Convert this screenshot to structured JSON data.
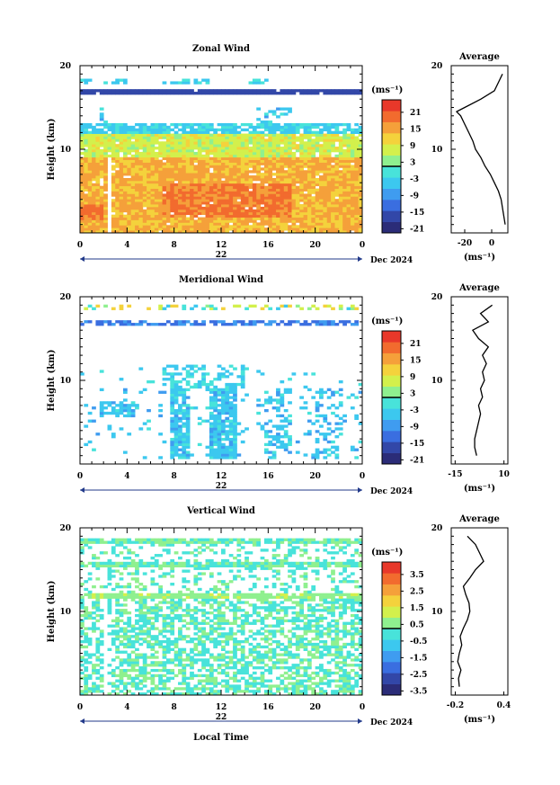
{
  "x_axis_label": "Local Time",
  "chart_data": [
    {
      "type": "heatmap",
      "title": "Zonal Wind",
      "ylabel": "Height (km)",
      "ylim": [
        0,
        20
      ],
      "yticks": [
        10,
        20
      ],
      "xlim": [
        0,
        24
      ],
      "xticks": [
        "0",
        "4",
        "8",
        "12",
        "16",
        "20",
        "0"
      ],
      "day_label": "22",
      "date_label": "Dec 2024",
      "colorbar": {
        "unit_label": "(ms⁻¹)",
        "tick_labels": [
          "21",
          "15",
          "9",
          "3",
          "-3",
          "-9",
          "-15",
          "-21"
        ],
        "range": [
          -24,
          24
        ]
      },
      "profile": {
        "title": "Average",
        "xticks": [
          "-20",
          "0"
        ],
        "xlim": [
          -30,
          12
        ],
        "xlabel": "(ms⁻¹)",
        "heights": [
          1,
          2,
          3,
          4,
          5,
          6,
          7,
          8,
          9,
          10,
          11,
          12,
          13,
          14,
          14.5,
          15,
          16,
          17,
          18,
          19
        ],
        "values": [
          10,
          9,
          8,
          7,
          5,
          2,
          -1,
          -5,
          -8,
          -12,
          -14,
          -17,
          -20,
          -23,
          -26,
          -20,
          -8,
          2,
          5,
          8
        ]
      }
    },
    {
      "type": "heatmap",
      "title": "Meridional Wind",
      "ylabel": "Height (km)",
      "ylim": [
        0,
        20
      ],
      "yticks": [
        10,
        20
      ],
      "xlim": [
        0,
        24
      ],
      "xticks": [
        "0",
        "4",
        "8",
        "12",
        "16",
        "20",
        "0"
      ],
      "day_label": "22",
      "date_label": "Dec 2024",
      "colorbar": {
        "unit_label": "(ms⁻¹)",
        "tick_labels": [
          "21",
          "15",
          "9",
          "3",
          "-3",
          "-9",
          "-15",
          "-21"
        ],
        "range": [
          -24,
          24
        ]
      },
      "profile": {
        "title": "Average",
        "xticks": [
          "-15",
          "10"
        ],
        "xlim": [
          -17,
          12
        ],
        "xlabel": "(ms⁻¹)",
        "heights": [
          1,
          2,
          3,
          4,
          5,
          6,
          7,
          8,
          9,
          10,
          11,
          12,
          13,
          14,
          15,
          16,
          17,
          18,
          19
        ],
        "values": [
          -4,
          -5,
          -5,
          -4,
          -3,
          -2,
          -3,
          -1,
          -2,
          0,
          -1,
          1,
          -1,
          2,
          -3,
          -6,
          2,
          -2,
          4
        ]
      }
    },
    {
      "type": "heatmap",
      "title": "Vertical Wind",
      "ylabel": "Height (km)",
      "ylim": [
        0,
        20
      ],
      "yticks": [
        10,
        20
      ],
      "xlim": [
        0,
        24
      ],
      "xticks": [
        "0",
        "4",
        "8",
        "12",
        "16",
        "20",
        "0"
      ],
      "day_label": "22",
      "date_label": "Dec 2024",
      "colorbar": {
        "unit_label": "(ms⁻¹)",
        "tick_labels": [
          "3.5",
          "2.5",
          "1.5",
          "0.5",
          "-0.5",
          "-1.5",
          "-2.5",
          "-3.5"
        ],
        "range": [
          -4,
          4
        ]
      },
      "profile": {
        "title": "Average",
        "xticks": [
          "-0.2",
          "0.4"
        ],
        "xlim": [
          -0.25,
          0.45
        ],
        "xlabel": "(ms⁻¹)",
        "heights": [
          1,
          2,
          3,
          4,
          5,
          6,
          7,
          8,
          9,
          10,
          11,
          12,
          13,
          14,
          15,
          16,
          17,
          18,
          19
        ],
        "values": [
          -0.15,
          -0.16,
          -0.13,
          -0.17,
          -0.15,
          -0.12,
          -0.14,
          -0.1,
          -0.05,
          -0.02,
          -0.03,
          -0.07,
          -0.1,
          -0.02,
          0.05,
          0.15,
          0.1,
          0.05,
          -0.05
        ]
      }
    }
  ]
}
